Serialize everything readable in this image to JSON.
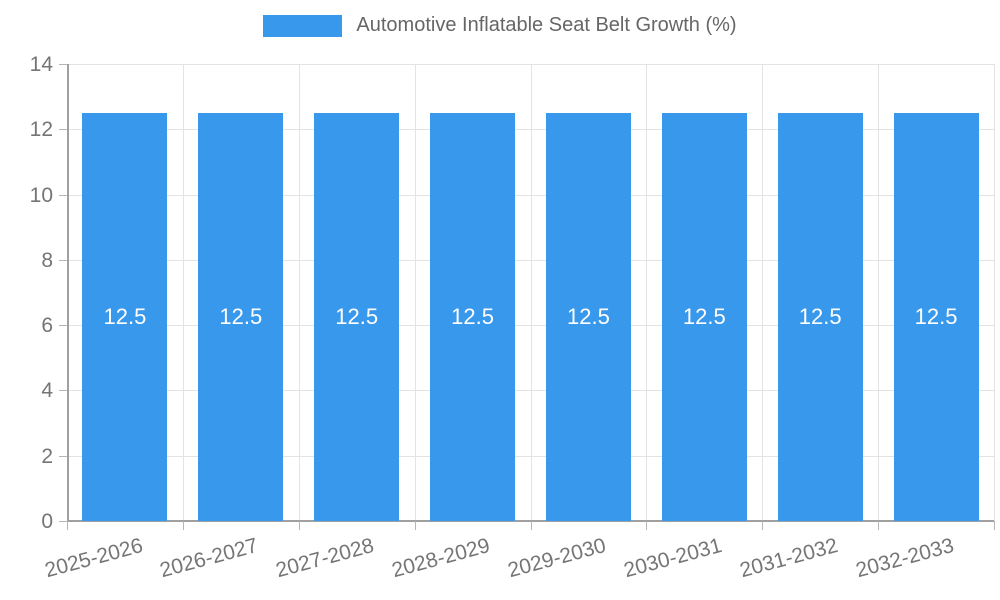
{
  "chart_data": {
    "type": "bar",
    "title": "Automotive Inflatable Seat Belt Growth (%)",
    "legend": {
      "position": "top",
      "label": "Automotive Inflatable Seat Belt Growth (%)"
    },
    "categories": [
      "2025-2026",
      "2026-2027",
      "2027-2028",
      "2028-2029",
      "2029-2030",
      "2030-2031",
      "2031-2032",
      "2032-2033"
    ],
    "values": [
      12.5,
      12.5,
      12.5,
      12.5,
      12.5,
      12.5,
      12.5,
      12.5
    ],
    "value_labels": [
      "12.5",
      "12.5",
      "12.5",
      "12.5",
      "12.5",
      "12.5",
      "12.5",
      "12.5"
    ],
    "xlabel": "",
    "ylabel": "",
    "ylim": [
      0,
      14
    ],
    "yticks": [
      0,
      2,
      4,
      6,
      8,
      10,
      12,
      14
    ],
    "grid": true,
    "colors": {
      "bar": "#3898ec",
      "value_label": "#ffffff",
      "tick_text": "#757575",
      "legend_text": "#666666",
      "gridline": "#e3e3e3",
      "axis": "#a0a0a0"
    }
  }
}
